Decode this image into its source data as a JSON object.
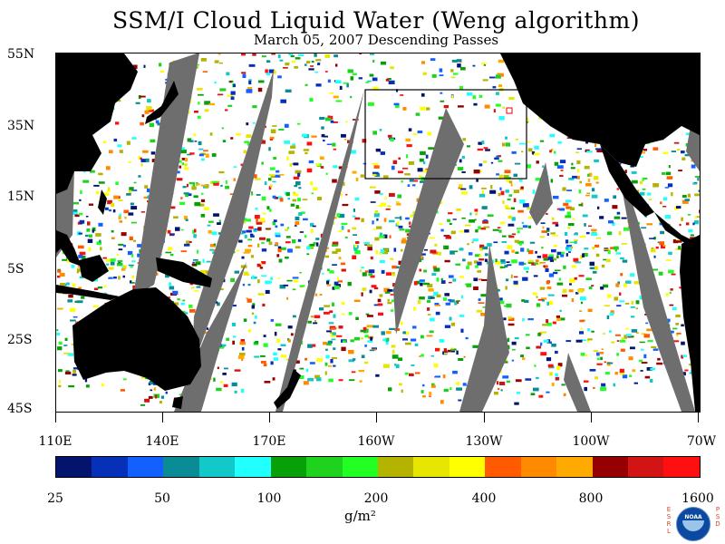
{
  "header": {
    "title": "SSM/I Cloud Liquid Water (Weng algorithm)",
    "subtitle": "March 05, 2007  Descending Passes"
  },
  "map": {
    "lat_labels": [
      "55N",
      "35N",
      "15N",
      "5S",
      "25S",
      "45S"
    ],
    "lon_labels": [
      "110E",
      "140E",
      "170E",
      "160W",
      "130W",
      "100W",
      "70W"
    ],
    "highlight_box_color": "#000000",
    "land_color": "#000000",
    "data_gap_color": "#6e6e6e"
  },
  "legend": {
    "labels": [
      "25",
      "50",
      "100",
      "200",
      "400",
      "800",
      "1600"
    ],
    "units": "g/m²",
    "colors": [
      "#02146e",
      "#0630b8",
      "#1460ff",
      "#0a8c96",
      "#12c8c8",
      "#22ffff",
      "#08a008",
      "#1ed21e",
      "#22ff22",
      "#b4b400",
      "#e6e600",
      "#ffff00",
      "#ff5a00",
      "#ff8a00",
      "#ffaa00",
      "#960000",
      "#d21414",
      "#ff1010"
    ]
  },
  "logo": {
    "text": "NOAA",
    "left_letters": [
      "E",
      "S",
      "R",
      "L"
    ],
    "right_letters": [
      "P",
      "S",
      "D"
    ]
  }
}
